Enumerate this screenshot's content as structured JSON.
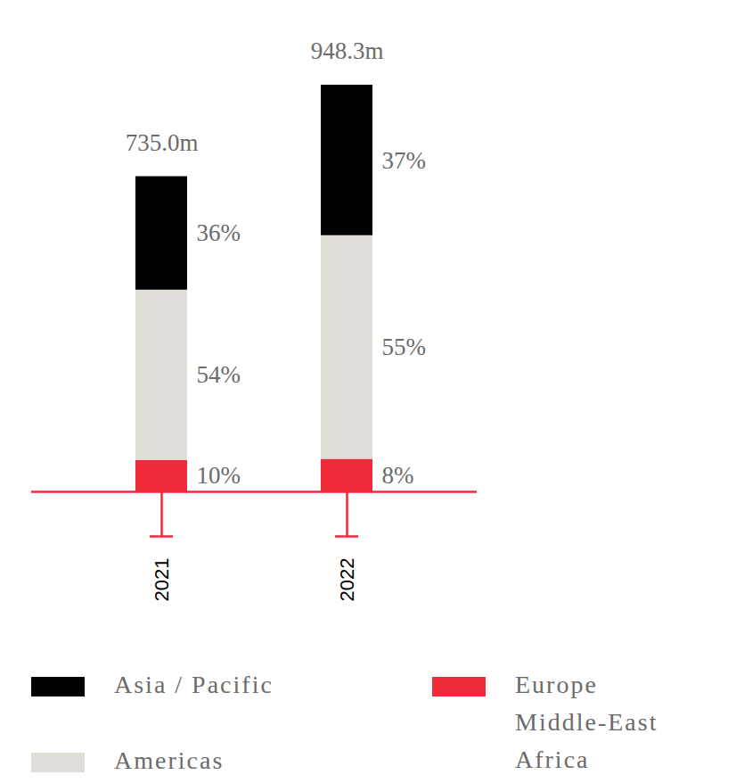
{
  "chart_data": {
    "type": "bar",
    "stacked": true,
    "data_labels": true,
    "tick_labels": "x",
    "legend": "bottom",
    "categories": [
      "2021",
      "2022"
    ],
    "totals": [
      735.0,
      948.3
    ],
    "total_labels": [
      "735.0m",
      "948.3m"
    ],
    "series": [
      {
        "name": "Europe Middle-East Africa",
        "color": "#ef2a3b",
        "values": [
          10,
          8
        ],
        "value_labels": [
          "10%",
          "8%"
        ]
      },
      {
        "name": "Americas",
        "color": "#e0dcd8",
        "values": [
          54,
          55
        ],
        "value_labels": [
          "54%",
          "55%"
        ]
      },
      {
        "name": "Asia / Pacific",
        "color": "#000000",
        "values": [
          36,
          37
        ],
        "value_labels": [
          "36%",
          "37%"
        ]
      }
    ]
  }
}
